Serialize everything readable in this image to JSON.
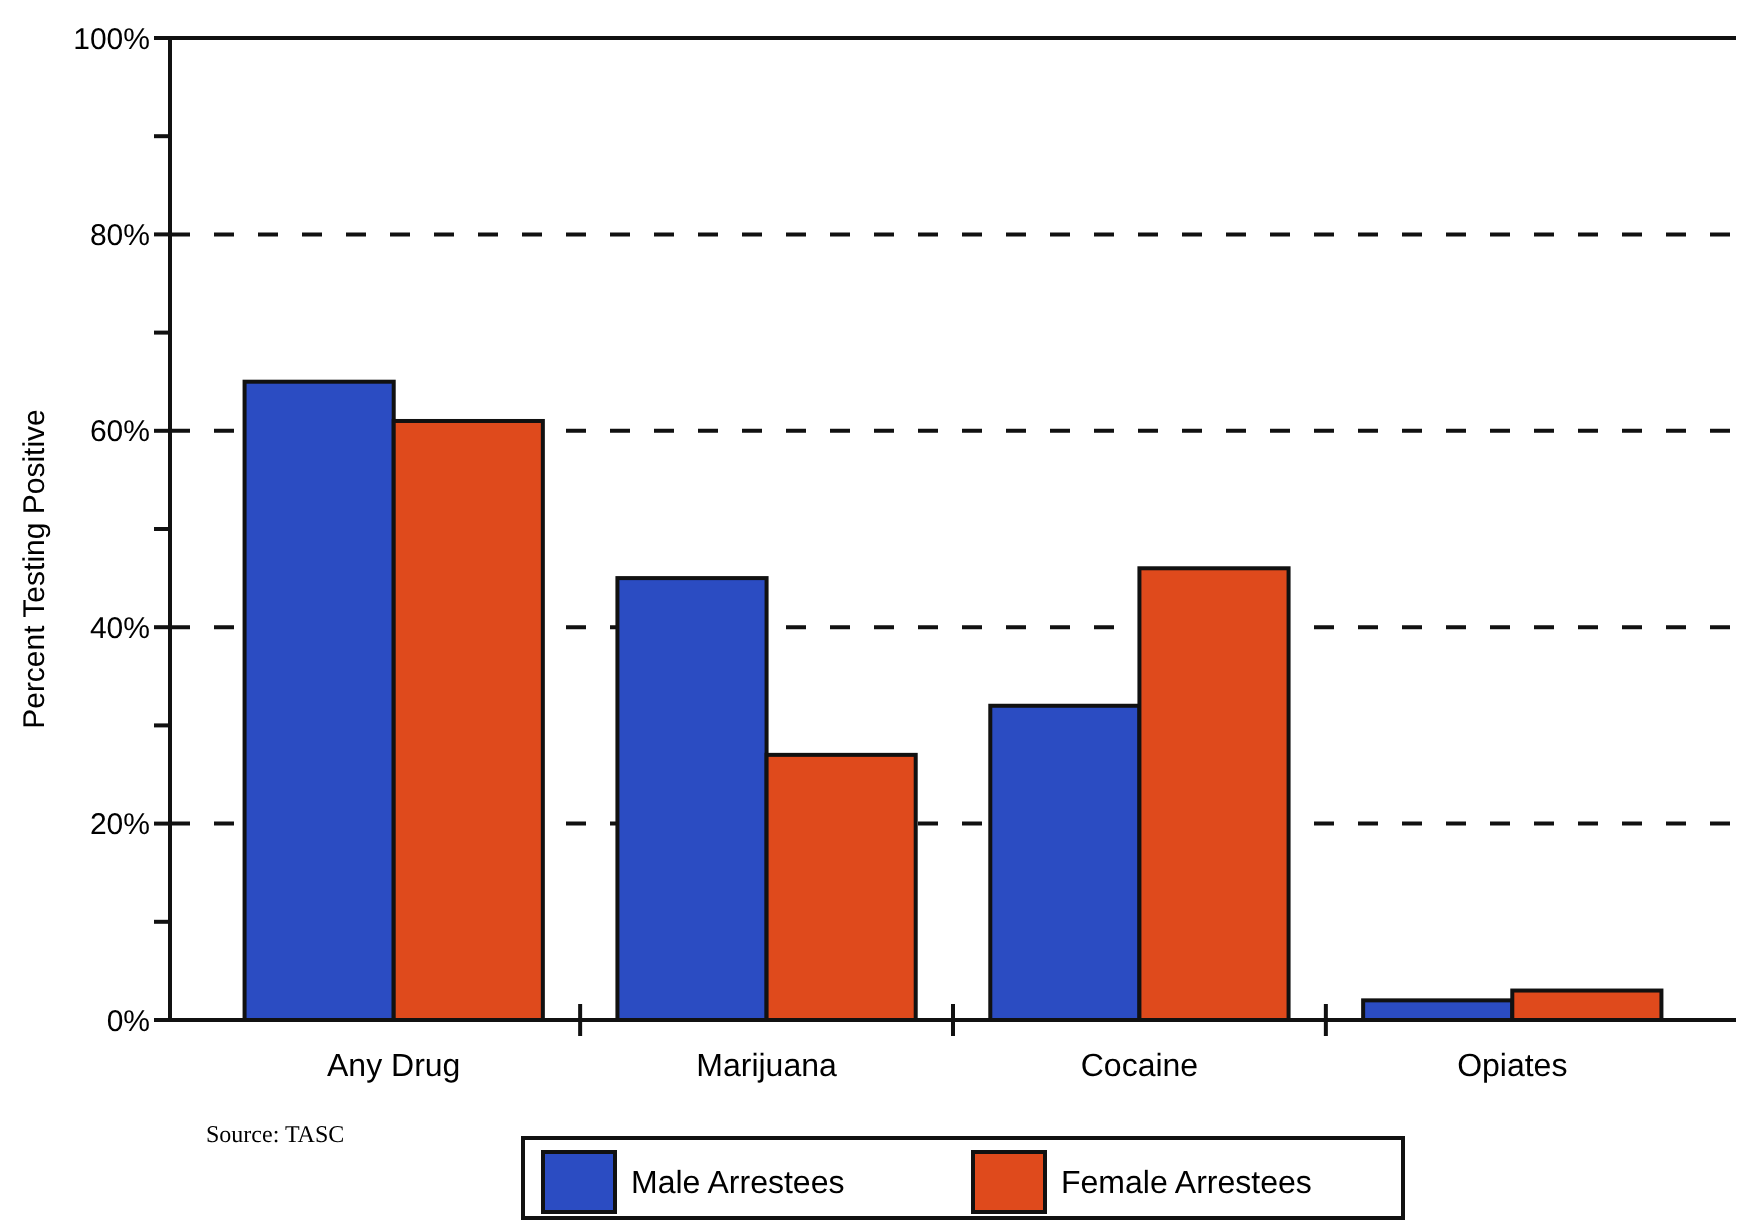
{
  "chart_data": {
    "type": "bar",
    "ylabel": "Percent Testing Positive",
    "categories": [
      "Any Drug",
      "Marijuana",
      "Cocaine",
      "Opiates"
    ],
    "series": [
      {
        "name": "Male Arrestees",
        "color": "#2b4cc2",
        "values": [
          65,
          45,
          32,
          2
        ]
      },
      {
        "name": "Female Arrestees",
        "color": "#df4a1c",
        "values": [
          61,
          27,
          46,
          3
        ]
      }
    ],
    "ylim": [
      0,
      100
    ],
    "yticks": [
      {
        "value": 0,
        "label": "0%"
      },
      {
        "value": 10,
        "label": null
      },
      {
        "value": 20,
        "label": "20%"
      },
      {
        "value": 30,
        "label": null
      },
      {
        "value": 40,
        "label": "40%"
      },
      {
        "value": 50,
        "label": null
      },
      {
        "value": 60,
        "label": "60%"
      },
      {
        "value": 70,
        "label": null
      },
      {
        "value": 80,
        "label": "80%"
      },
      {
        "value": 90,
        "label": null
      },
      {
        "value": 100,
        "label": "100%"
      }
    ],
    "grid": "y",
    "legend": "bottom",
    "annotations": [
      "Source: TASC"
    ]
  }
}
